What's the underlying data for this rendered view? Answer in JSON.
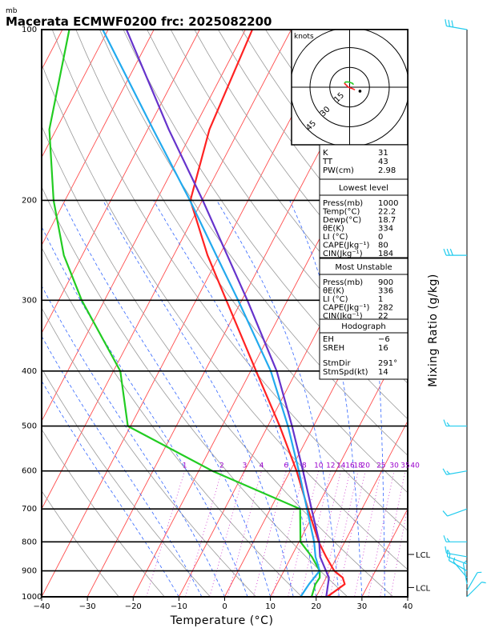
{
  "header": {
    "unit_label": "mb",
    "title": "Macerata ECMWF0200  frc: 2025082200"
  },
  "chart_data": {
    "type": "line",
    "title": "Macerata ECMWF0200  frc: 2025082200",
    "xlabel": "Temperature (°C)",
    "ylabel_right": "Mixing Ratio (g/kg)",
    "pressure_unit": "mb",
    "x_range": [
      -40,
      40
    ],
    "p_range": [
      1000,
      100
    ],
    "x_ticks": [
      -40,
      -30,
      -20,
      -10,
      0,
      10,
      20,
      30,
      40
    ],
    "p_ticks": [
      100,
      200,
      300,
      400,
      500,
      600,
      700,
      800,
      900,
      1000
    ],
    "isotherm_step": 10,
    "dry_adiabats_theta_K": [
      250,
      260,
      270,
      280,
      290,
      300,
      310,
      320,
      330,
      340,
      350,
      360,
      370,
      380,
      390,
      400,
      410,
      420,
      430,
      440,
      450,
      460,
      470,
      480,
      490,
      500,
      510,
      520,
      530
    ],
    "moist_adiabats_thetaw_C": [
      -10,
      -5,
      0,
      5,
      10,
      15,
      20,
      25,
      30,
      35
    ],
    "mixing_ratio_lines": [
      {
        "value": 1,
        "label": "1"
      },
      {
        "value": 2,
        "label": "2"
      },
      {
        "value": 3,
        "label": "3"
      },
      {
        "value": 4,
        "label": "4"
      },
      {
        "value": 6,
        "label": "6"
      },
      {
        "value": 8,
        "label": "8"
      },
      {
        "value": 10,
        "label": "10"
      },
      {
        "value": 12,
        "label": "12"
      },
      {
        "value": 14,
        "label": "14"
      },
      {
        "value": 16,
        "label": "16"
      },
      {
        "value": 18,
        "label": "18"
      },
      {
        "value": 20,
        "label": "20"
      },
      {
        "value": 25,
        "label": "25"
      },
      {
        "value": 30,
        "label": "30"
      },
      {
        "value": 35,
        "label": "35"
      },
      {
        "value": 40,
        "label": "40"
      }
    ],
    "series": [
      {
        "name": "Temperature",
        "color": "#ff2222",
        "points": [
          [
            1000,
            22.4
          ],
          [
            950,
            24.8
          ],
          [
            925,
            23.6
          ],
          [
            900,
            21.0
          ],
          [
            850,
            17.6
          ],
          [
            800,
            14.3
          ],
          [
            700,
            8.2
          ],
          [
            600,
            1.4
          ],
          [
            500,
            -7.4
          ],
          [
            400,
            -18.8
          ],
          [
            300,
            -33.4
          ],
          [
            250,
            -42.6
          ],
          [
            200,
            -52.6
          ],
          [
            150,
            -56.5
          ],
          [
            100,
            -58.5
          ]
        ]
      },
      {
        "name": "Dewpoint",
        "color": "#22cc22",
        "points": [
          [
            1000,
            19.0
          ],
          [
            950,
            18.4
          ],
          [
            925,
            18.6
          ],
          [
            900,
            17.8
          ],
          [
            850,
            14.5
          ],
          [
            800,
            10.3
          ],
          [
            700,
            6.5
          ],
          [
            600,
            -17.0
          ],
          [
            500,
            -40.6
          ],
          [
            400,
            -48.5
          ],
          [
            300,
            -65.0
          ],
          [
            250,
            -74.0
          ],
          [
            200,
            -82.5
          ],
          [
            150,
            -91.5
          ],
          [
            100,
            -98.5
          ]
        ]
      },
      {
        "name": "Parcel (lowest level)",
        "color": "#6633cc",
        "points": [
          [
            1000,
            22.2
          ],
          [
            925,
            20.6
          ],
          [
            900,
            19.2
          ],
          [
            850,
            16.3
          ],
          [
            800,
            14.4
          ],
          [
            700,
            9.0
          ],
          [
            600,
            2.8
          ],
          [
            500,
            -4.7
          ],
          [
            400,
            -14.3
          ],
          [
            300,
            -28.8
          ],
          [
            250,
            -38.3
          ],
          [
            200,
            -49.9
          ],
          [
            150,
            -65.4
          ],
          [
            100,
            -86.0
          ]
        ]
      },
      {
        "name": "Parcel (most unstable)",
        "color": "#22aaee",
        "points": [
          [
            1000,
            16.6
          ],
          [
            950,
            17.0
          ],
          [
            900,
            17.8
          ],
          [
            850,
            15.3
          ],
          [
            800,
            13.3
          ],
          [
            700,
            8.0
          ],
          [
            600,
            1.9
          ],
          [
            500,
            -5.6
          ],
          [
            400,
            -15.6
          ],
          [
            300,
            -30.8
          ],
          [
            250,
            -40.7
          ],
          [
            200,
            -52.7
          ],
          [
            150,
            -68.8
          ],
          [
            100,
            -91.2
          ]
        ]
      }
    ],
    "lcl_labels": [
      {
        "p": 963,
        "text": "LCL"
      },
      {
        "p": 842,
        "text": "LCL"
      }
    ],
    "wind_profile": [
      {
        "p": 1000,
        "dir": 45,
        "spd": 5
      },
      {
        "p": 975,
        "dir": 30,
        "spd": 5
      },
      {
        "p": 950,
        "dir": 350,
        "spd": 5
      },
      {
        "p": 925,
        "dir": 320,
        "spd": 5
      },
      {
        "p": 900,
        "dir": 300,
        "spd": 10
      },
      {
        "p": 875,
        "dir": 290,
        "spd": 10
      },
      {
        "p": 850,
        "dir": 280,
        "spd": 15
      },
      {
        "p": 800,
        "dir": 270,
        "spd": 15
      },
      {
        "p": 700,
        "dir": 250,
        "spd": 10
      },
      {
        "p": 600,
        "dir": 260,
        "spd": 15
      },
      {
        "p": 500,
        "dir": 270,
        "spd": 15
      },
      {
        "p": 250,
        "dir": 270,
        "spd": 30
      },
      {
        "p": 100,
        "dir": 280,
        "spd": 30
      }
    ],
    "hodograph": {
      "unit_label": "knots",
      "ring_labels": [
        "15",
        "30",
        "45"
      ],
      "rings_kt": [
        15,
        30,
        45
      ],
      "trace_kt": [
        [
          3,
          2
        ],
        [
          2,
          3
        ],
        [
          -1,
          4
        ],
        [
          -3,
          4
        ],
        [
          -4,
          3
        ],
        [
          -1,
          0
        ],
        [
          2,
          -1
        ],
        [
          4,
          -2
        ]
      ],
      "storm_motion": {
        "dir": 291,
        "spd": 14
      }
    }
  },
  "indices": {
    "basic": [
      {
        "label": "K",
        "value": "31"
      },
      {
        "label": "TT",
        "value": "43"
      },
      {
        "label": "PW(cm)",
        "value": "2.98"
      }
    ],
    "lowest": {
      "heading": "Lowest level",
      "rows": [
        {
          "label": "Press(mb)",
          "value": "1000"
        },
        {
          "label": "Temp(°C)",
          "value": "22.2"
        },
        {
          "label": "Dewp(°C)",
          "value": "18.7"
        },
        {
          "label": "θE(K)",
          "value": "334"
        },
        {
          "label": "LI (°C)",
          "value": "0"
        },
        {
          "label": "CAPE(Jkg⁻¹)",
          "value": "80"
        },
        {
          "label": "CIN(Jkg⁻¹)",
          "value": "184"
        }
      ]
    },
    "most_unstable": {
      "heading": "Most Unstable",
      "rows": [
        {
          "label": "Press(mb)",
          "value": "900"
        },
        {
          "label": "θE(K)",
          "value": "336"
        },
        {
          "label": "LI (°C)",
          "value": "1"
        },
        {
          "label": "CAPE(Jkg⁻¹)",
          "value": "282"
        },
        {
          "label": "CIN(Jkg⁻¹)",
          "value": "22"
        }
      ]
    },
    "hodograph": {
      "heading": "Hodograph",
      "rows": [
        {
          "label": "EH",
          "value": "−6"
        },
        {
          "label": "SREH",
          "value": "16"
        }
      ],
      "rows2": [
        {
          "label": "StmDir",
          "value": "291°"
        },
        {
          "label": "StmSpd(kt)",
          "value": "14"
        }
      ]
    }
  },
  "colors": {
    "isotherm": "#ff4d4d",
    "dry_adiabat": "#999999",
    "moist_adiabat": "#3366ff",
    "mixing_ratio": "#cc33cc",
    "isobar": "#000000",
    "wind_barb": "#22ccee"
  }
}
